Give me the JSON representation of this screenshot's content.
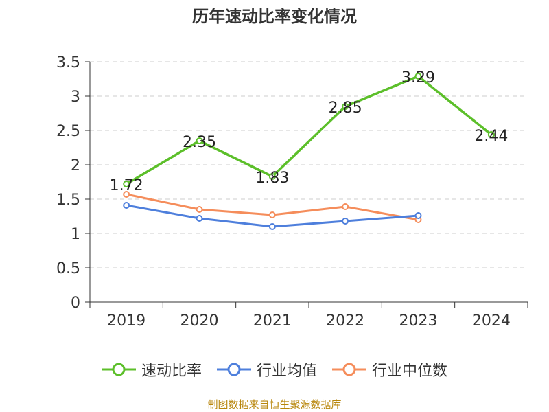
{
  "title": "历年速动比率变化情况",
  "source": "制图数据来自恒生聚源数据库",
  "colors": {
    "quick_ratio": "#5cbf2a",
    "industry_avg": "#4e7fdc",
    "industry_median": "#f58d5b",
    "axis": "#333333",
    "grid": "#cccccc"
  },
  "chart_data": {
    "type": "line",
    "title": "历年速动比率变化情况",
    "categories": [
      "2019",
      "2020",
      "2021",
      "2022",
      "2023",
      "2024"
    ],
    "ylim": [
      0,
      3.5
    ],
    "yticks": [
      "0",
      "0.5",
      "1",
      "1.5",
      "2",
      "2.5",
      "3",
      "3.5"
    ],
    "grid": true,
    "legend_position": "bottom",
    "series": [
      {
        "name": "速动比率",
        "values": [
          1.72,
          2.35,
          1.83,
          2.85,
          3.29,
          2.44
        ],
        "labels": [
          "1.72",
          "2.35",
          "1.83",
          "2.85",
          "3.29",
          "2.44"
        ]
      },
      {
        "name": "行业均值",
        "values": [
          1.41,
          1.22,
          1.1,
          1.18,
          1.26,
          null
        ]
      },
      {
        "name": "行业中位数",
        "values": [
          1.57,
          1.35,
          1.27,
          1.39,
          1.2,
          null
        ]
      }
    ]
  }
}
